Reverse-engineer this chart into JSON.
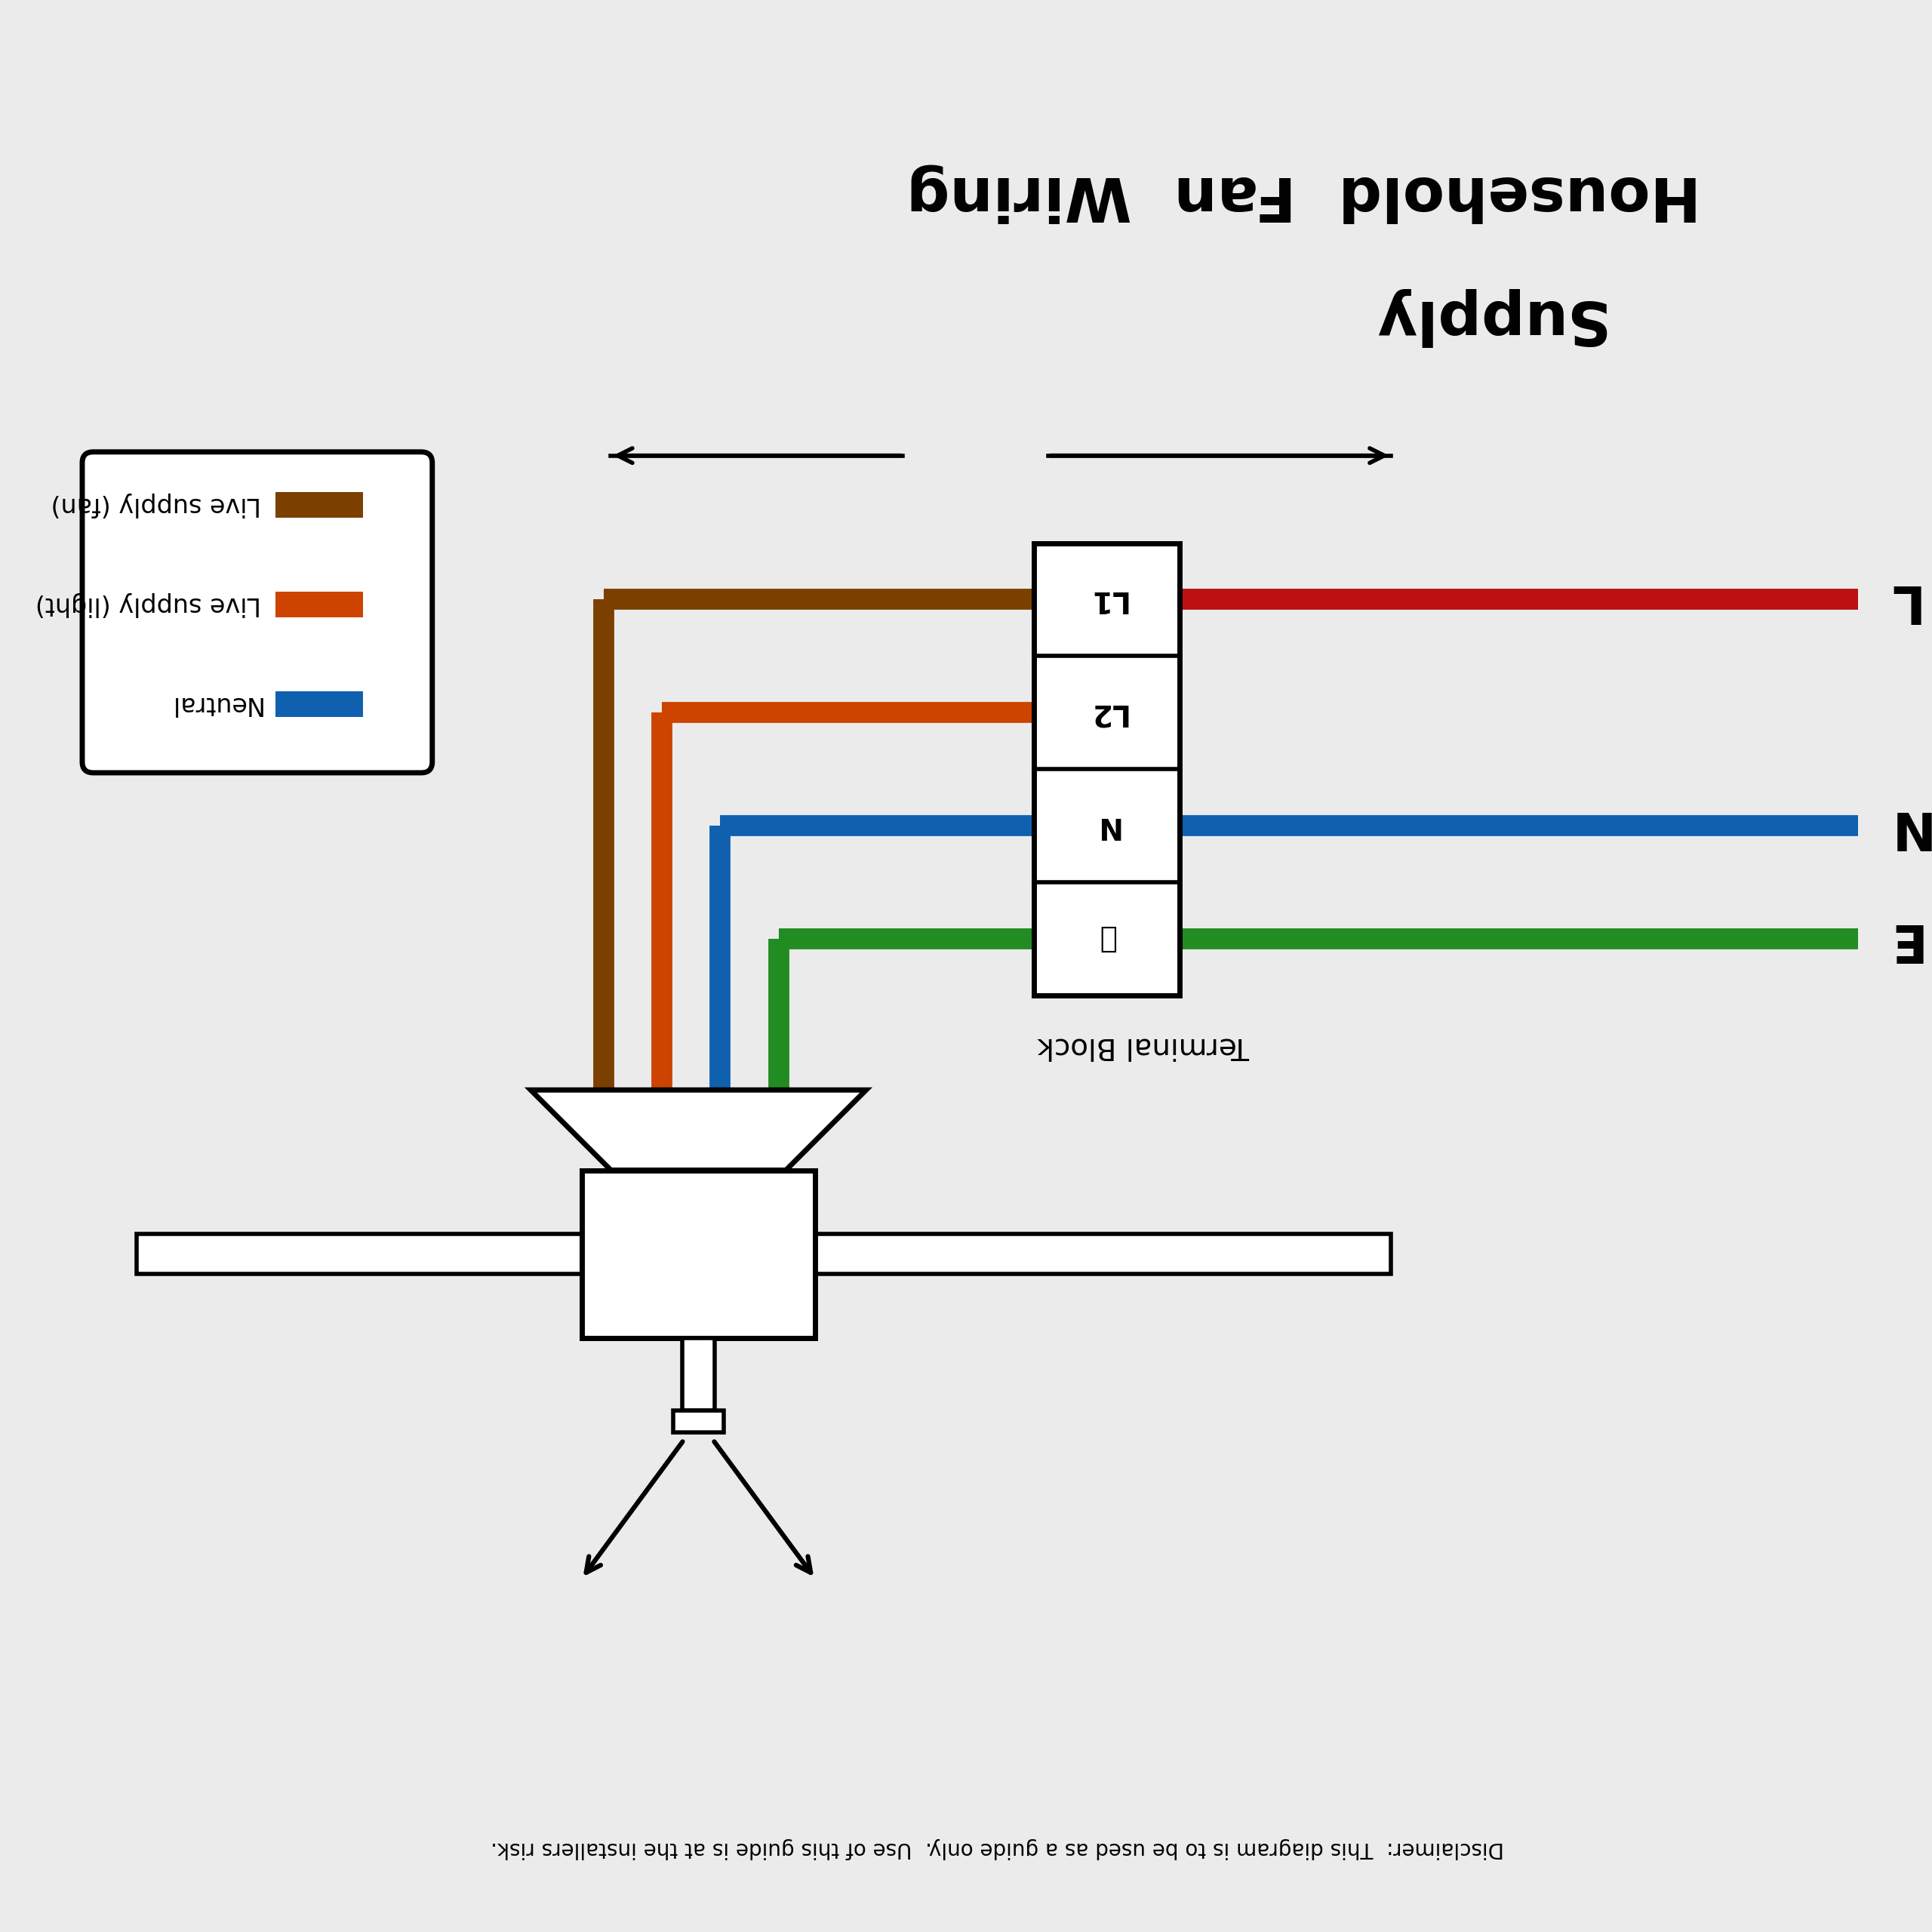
{
  "bg_color": "#ebebeb",
  "title_line1": "Household  Fan  Wiring",
  "title_line2": "Supply",
  "title_fontsize": 58,
  "wire_brown": "#7B3F00",
  "wire_orange": "#CC4400",
  "wire_blue": "#1060B0",
  "wire_green": "#228B22",
  "wire_red": "#BB1111",
  "legend_items": [
    {
      "label": "Live supply (fan)",
      "color": "#7B3F00"
    },
    {
      "label": "Live supply (light)",
      "color": "#CC4400"
    },
    {
      "label": "Neutral",
      "color": "#1060B0"
    }
  ],
  "terminal_block_label": "Terminal Block",
  "disclaimer": "Disclaimer:  This diagram is to be used as a guide only.  Use of this guide is at the installers risk."
}
